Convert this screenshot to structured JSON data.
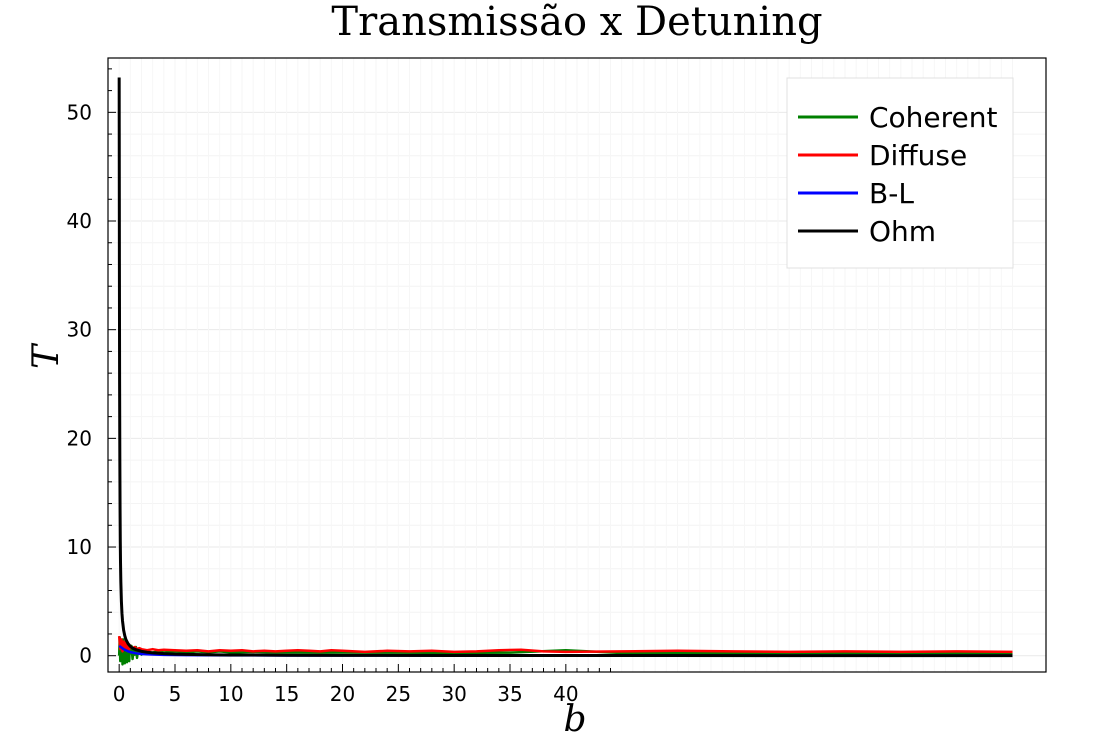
{
  "chart_data": {
    "type": "line",
    "title": "Transmissão x Detuning",
    "xlabel": "b",
    "ylabel": "T",
    "xlim": [
      -1,
      83
    ],
    "ylim": [
      -1.5,
      55
    ],
    "x_ticks": [
      0,
      5,
      10,
      15,
      20,
      25,
      30,
      35,
      40
    ],
    "y_ticks": [
      0,
      10,
      20,
      30,
      40,
      50
    ],
    "grid": true,
    "legend_position": "top-right",
    "series": [
      {
        "name": "Coherent",
        "color": "#008000",
        "x": [
          0.0,
          0.05,
          0.1,
          0.15,
          0.2,
          0.25,
          0.3,
          0.35,
          0.4,
          0.45,
          0.5,
          0.55,
          0.6,
          0.65,
          0.7,
          0.75,
          0.8,
          0.85,
          0.9,
          0.95,
          1.0,
          1.1,
          1.2,
          1.3,
          1.4,
          1.5,
          1.6,
          1.7,
          1.8,
          1.9,
          2.0,
          2.2,
          2.4,
          2.6,
          2.8,
          3.0,
          3.5,
          4.0,
          5,
          6,
          7,
          8,
          9,
          10,
          12,
          14,
          16,
          18,
          20,
          25,
          30,
          35,
          40,
          45,
          50,
          55,
          60,
          65,
          70,
          75,
          80
        ],
        "y": [
          0.0,
          1.7,
          -0.5,
          1.4,
          -0.3,
          1.2,
          -0.8,
          1.5,
          -0.2,
          1.1,
          -0.7,
          1.3,
          -0.4,
          0.9,
          -0.6,
          1.0,
          0.1,
          0.9,
          -0.5,
          0.8,
          0.2,
          0.9,
          -0.3,
          0.7,
          0.1,
          0.8,
          -0.2,
          0.6,
          0.2,
          0.5,
          0.1,
          0.5,
          0.2,
          0.4,
          0.3,
          0.3,
          0.4,
          0.3,
          0.4,
          0.3,
          0.4,
          0.3,
          0.4,
          0.3,
          0.35,
          0.3,
          0.3,
          0.28,
          0.3,
          0.28,
          0.26,
          0.28,
          0.5,
          0.25,
          0.22,
          0.22,
          0.24,
          0.24,
          0.24,
          0.24,
          0.24
        ]
      },
      {
        "name": "Diffuse",
        "color": "#ff0000",
        "x": [
          0.0,
          0.1,
          0.2,
          0.3,
          0.4,
          0.5,
          0.6,
          0.7,
          0.8,
          0.9,
          1.0,
          1.2,
          1.4,
          1.6,
          1.8,
          2.0,
          2.5,
          3.0,
          3.5,
          4.0,
          5,
          6,
          7,
          8,
          9,
          10,
          11,
          12,
          13,
          14,
          15,
          16,
          17,
          18,
          19,
          20,
          22,
          24,
          26,
          28,
          30,
          32,
          34,
          36,
          38,
          40,
          45,
          50,
          55,
          60,
          65,
          70,
          75,
          80
        ],
        "y": [
          1.8,
          0.6,
          1.5,
          0.4,
          1.3,
          0.7,
          1.2,
          0.5,
          1.0,
          0.6,
          0.9,
          0.7,
          0.8,
          0.6,
          0.7,
          0.6,
          0.5,
          0.6,
          0.5,
          0.55,
          0.5,
          0.45,
          0.5,
          0.4,
          0.5,
          0.45,
          0.5,
          0.4,
          0.45,
          0.4,
          0.45,
          0.5,
          0.45,
          0.4,
          0.5,
          0.45,
          0.35,
          0.45,
          0.4,
          0.45,
          0.35,
          0.4,
          0.5,
          0.55,
          0.4,
          0.35,
          0.4,
          0.45,
          0.4,
          0.35,
          0.4,
          0.35,
          0.4,
          0.35
        ]
      },
      {
        "name": "B-L",
        "color": "#0000ff",
        "x": [
          0.0,
          0.2,
          0.4,
          0.6,
          0.8,
          1.0,
          1.5,
          2.0,
          3,
          4,
          5,
          6,
          8,
          10,
          15,
          20,
          30,
          40,
          50,
          60,
          70,
          80
        ],
        "y": [
          0.9,
          0.75,
          0.6,
          0.5,
          0.4,
          0.33,
          0.22,
          0.16,
          0.11,
          0.08,
          0.065,
          0.055,
          0.04,
          0.033,
          0.022,
          0.016,
          0.011,
          0.008,
          0.0066,
          0.0055,
          0.0047,
          0.0041
        ]
      },
      {
        "name": "Ohm",
        "color": "#000000",
        "x": [
          0.0,
          0.02,
          0.04,
          0.06,
          0.08,
          0.1,
          0.12,
          0.15,
          0.2,
          0.25,
          0.3,
          0.4,
          0.5,
          0.6,
          0.8,
          1.0,
          1.2,
          1.5,
          2.0,
          2.5,
          3,
          4,
          5,
          6,
          8,
          10,
          15,
          20,
          30,
          40,
          50,
          60,
          70,
          80
        ],
        "y": [
          53.2,
          36.5,
          25.0,
          18.0,
          13.5,
          10.5,
          8.6,
          6.8,
          5.0,
          3.9,
          3.2,
          2.35,
          1.85,
          1.5,
          1.1,
          0.85,
          0.7,
          0.55,
          0.4,
          0.32,
          0.26,
          0.19,
          0.15,
          0.12,
          0.09,
          0.07,
          0.046,
          0.034,
          0.022,
          0.017,
          0.013,
          0.011,
          0.0095,
          0.0083
        ]
      }
    ]
  }
}
